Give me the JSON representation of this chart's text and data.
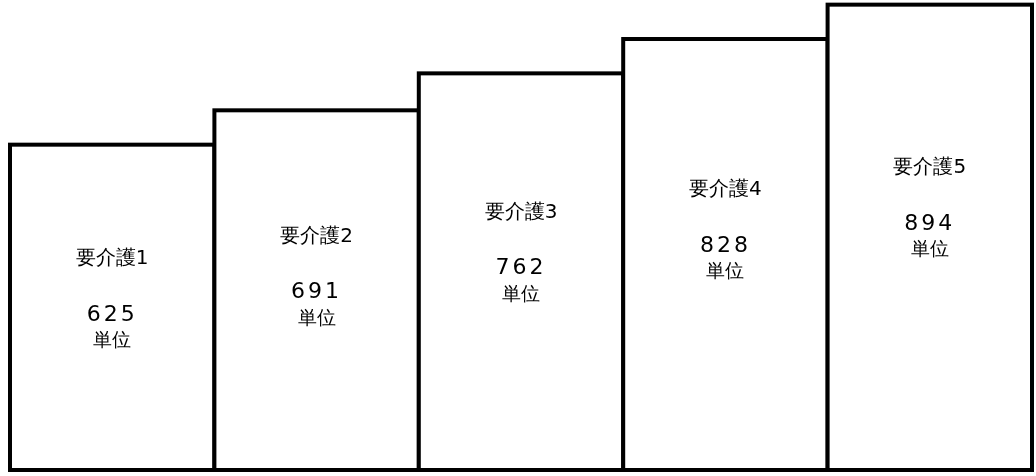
{
  "chart_data": {
    "type": "bar",
    "categories": [
      "要介護1",
      "要介護2",
      "要介護3",
      "要介護4",
      "要介護5"
    ],
    "values": [
      625,
      691,
      762,
      828,
      894
    ],
    "value_labels": [
      "625 単位",
      "691 単位",
      "762 単位",
      "828 単位",
      "894 単位"
    ],
    "color": "#ffffff"
  }
}
